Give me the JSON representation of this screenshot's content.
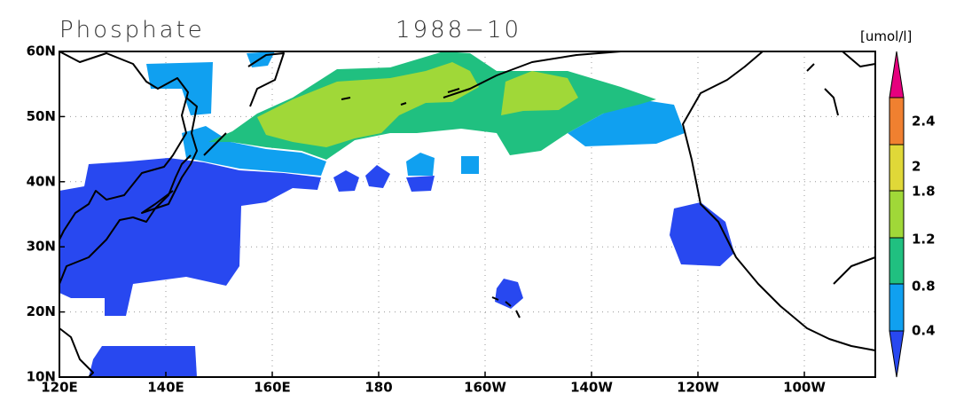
{
  "map": {
    "title": "Phosphate",
    "date": "1988−10",
    "unit": "[umol/l]",
    "x_labels": [
      "120E",
      "140E",
      "160E",
      "180",
      "160W",
      "140W",
      "120W",
      "100W"
    ],
    "y_labels": [
      "60N",
      "50N",
      "40N",
      "30N",
      "20N",
      "10N"
    ],
    "colorbar_labels": [
      "2.4",
      "2",
      "1.8",
      "1.2",
      "0.8",
      "0.4"
    ]
  }
}
